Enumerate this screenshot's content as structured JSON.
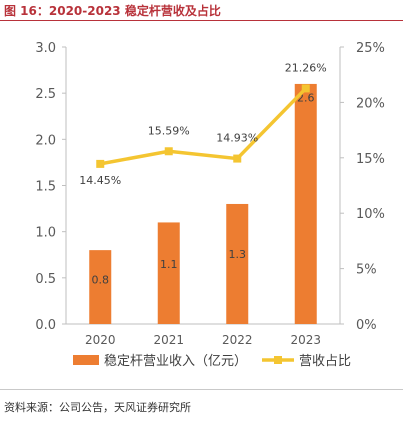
{
  "title": "图 16：2020-2023 稳定杆营收及占比",
  "source": "资料来源：公司公告，天风证券研究所",
  "colors": {
    "bar": "#ed7d31",
    "line": "#f4c531",
    "title": "#b8323a"
  },
  "chart_data": {
    "type": "bar+line",
    "categories": [
      "2020",
      "2021",
      "2022",
      "2023"
    ],
    "series": [
      {
        "name": "稳定杆营业收入（亿元）",
        "type": "bar",
        "axis": "left",
        "values": [
          0.8,
          1.1,
          1.3,
          2.6
        ],
        "labels": [
          "0.8",
          "1.1",
          "1.3",
          "2.6"
        ]
      },
      {
        "name": "营收占比",
        "type": "line",
        "axis": "right",
        "values": [
          0.1445,
          0.1559,
          0.1493,
          0.2126
        ],
        "labels": [
          "14.45%",
          "15.59%",
          "14.93%",
          "21.26%"
        ]
      }
    ],
    "y_left": {
      "min": 0,
      "max": 3.0,
      "ticks": [
        "0.0",
        "0.5",
        "1.0",
        "1.5",
        "2.0",
        "2.5",
        "3.0"
      ]
    },
    "y_right": {
      "min": 0,
      "max": 0.25,
      "ticks": [
        "0%",
        "5%",
        "10%",
        "15%",
        "20%",
        "25%"
      ]
    },
    "legend_position": "bottom",
    "grid": false
  }
}
